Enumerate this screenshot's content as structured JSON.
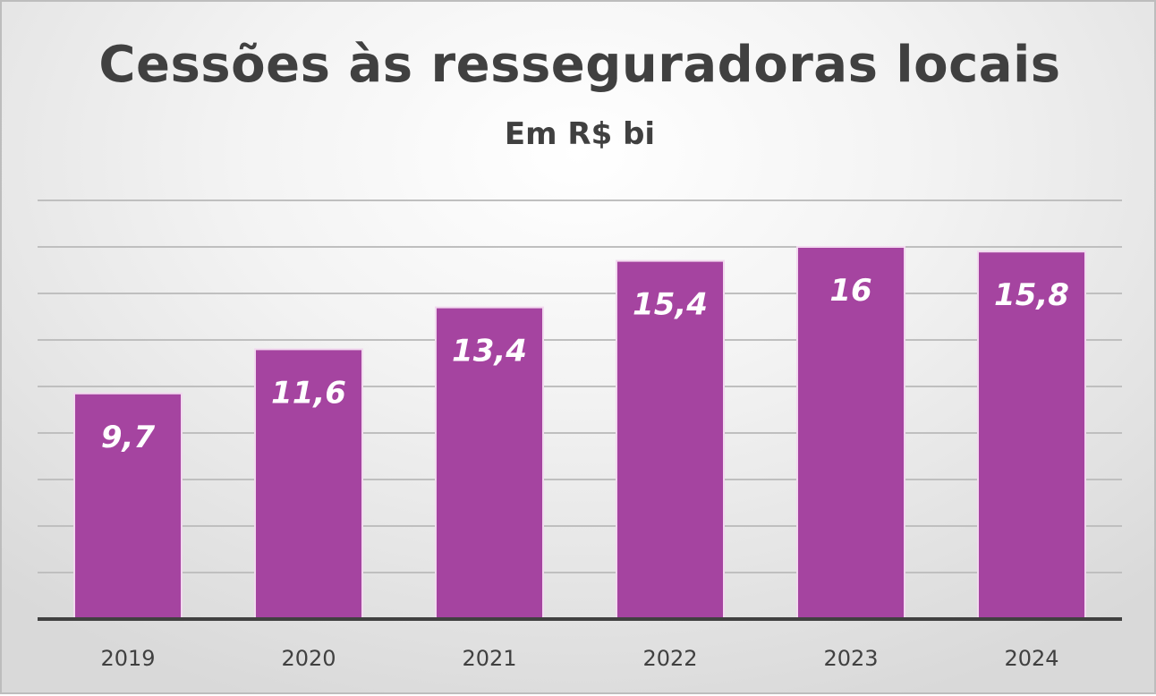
{
  "chart_data": {
    "type": "bar",
    "title": "Cessões às resseguradoras locais",
    "subtitle": "Em R$ bi",
    "categories": [
      "2019",
      "2020",
      "2021",
      "2022",
      "2023",
      "2024"
    ],
    "values": [
      9.7,
      11.6,
      13.4,
      15.4,
      16,
      15.8
    ],
    "data_labels": [
      "9,7",
      "11,6",
      "13,4",
      "15,4",
      "16",
      "15,8"
    ],
    "ylim": [
      0,
      18
    ],
    "grid": true,
    "legend": "none",
    "colors": {
      "bar": "#a544a0",
      "bar_edge": "#f2d9ef",
      "grid": "#bfbfbf",
      "axis": "#404040",
      "text": "#404040"
    }
  }
}
